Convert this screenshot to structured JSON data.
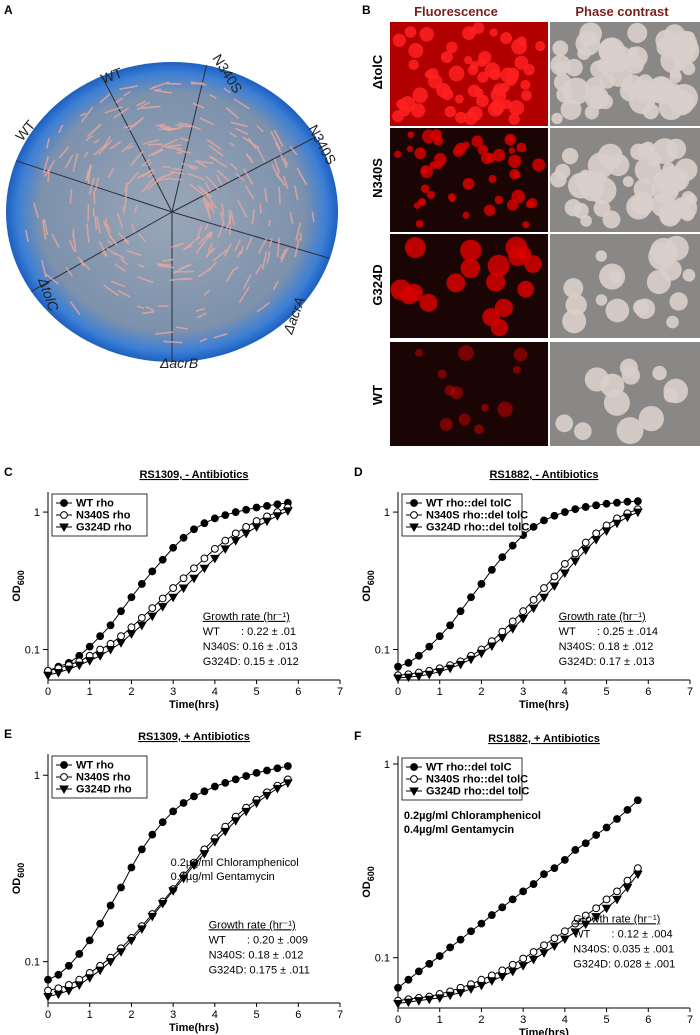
{
  "panels": {
    "A": {
      "label": "A",
      "plate_labels": [
        "WT",
        "N340S",
        "WT",
        "N340S",
        "ΔtolC",
        "ΔacrB",
        "ΔacrA"
      ]
    },
    "B": {
      "label": "B",
      "columns": [
        "Fluorescence",
        "Phase contrast"
      ],
      "rows": [
        "ΔtolC",
        "N340S",
        "G324D",
        "WT"
      ]
    }
  },
  "chart_data": [
    {
      "label": "C",
      "type": "line",
      "title": "RS1309, - Antibiotics",
      "xlabel": "Time(hrs)",
      "ylabel": "OD",
      "ylabel_sub": "600",
      "log_y": true,
      "legend": "upper left",
      "xlim": [
        0,
        7
      ],
      "xticks": [
        0,
        1,
        2,
        3,
        4,
        5,
        6,
        7
      ],
      "ylim": [
        0.06,
        1.4
      ],
      "yticks": [
        0.1,
        1
      ],
      "annotation_header": "Growth rate (hr⁻¹)",
      "annotation_rows": [
        "WT       : 0.22 ± .01",
        "N340S: 0.16 ± .013",
        "G324D: 0.15 ± .012"
      ],
      "x": [
        0,
        0.25,
        0.5,
        0.75,
        1,
        1.25,
        1.5,
        1.75,
        2,
        2.25,
        2.5,
        2.75,
        3,
        3.25,
        3.5,
        3.75,
        4,
        4.25,
        4.5,
        4.75,
        5,
        5.25,
        5.5,
        5.75
      ],
      "series": [
        {
          "name": "WT rho",
          "color": "#000000",
          "marker": "circle-filled",
          "values": [
            0.07,
            0.075,
            0.08,
            0.09,
            0.105,
            0.125,
            0.15,
            0.19,
            0.24,
            0.3,
            0.37,
            0.45,
            0.55,
            0.65,
            0.75,
            0.83,
            0.9,
            0.95,
            1.0,
            1.04,
            1.08,
            1.11,
            1.14,
            1.17
          ]
        },
        {
          "name": "N340S rho",
          "color": "#000000",
          "marker": "circle-open",
          "values": [
            0.07,
            0.073,
            0.077,
            0.082,
            0.09,
            0.1,
            0.11,
            0.125,
            0.145,
            0.17,
            0.2,
            0.235,
            0.28,
            0.33,
            0.39,
            0.46,
            0.54,
            0.62,
            0.7,
            0.78,
            0.86,
            0.93,
            1.0,
            1.08
          ]
        },
        {
          "name": "G324D rho",
          "color": "#000000",
          "marker": "triangle-down",
          "values": [
            0.065,
            0.068,
            0.072,
            0.077,
            0.083,
            0.09,
            0.1,
            0.112,
            0.13,
            0.15,
            0.175,
            0.205,
            0.24,
            0.28,
            0.33,
            0.39,
            0.46,
            0.54,
            0.62,
            0.7,
            0.78,
            0.86,
            0.94,
            1.02
          ]
        }
      ]
    },
    {
      "label": "D",
      "type": "line",
      "title": "RS1882, - Antibiotics",
      "xlabel": "Time(hrs)",
      "ylabel": "OD",
      "ylabel_sub": "600",
      "log_y": true,
      "legend": "upper left",
      "xlim": [
        0,
        7
      ],
      "xticks": [
        0,
        1,
        2,
        3,
        4,
        5,
        6,
        7
      ],
      "ylim": [
        0.06,
        1.4
      ],
      "yticks": [
        0.1,
        1
      ],
      "annotation_header": "Growth rate (hr⁻¹)",
      "annotation_rows": [
        "WT       : 0.25 ± .014",
        "N340S: 0.18 ± .012",
        "G324D: 0.17 ± .013"
      ],
      "x": [
        0,
        0.25,
        0.5,
        0.75,
        1,
        1.25,
        1.5,
        1.75,
        2,
        2.25,
        2.5,
        2.75,
        3,
        3.25,
        3.5,
        3.75,
        4,
        4.25,
        4.5,
        4.75,
        5,
        5.25,
        5.5,
        5.75
      ],
      "series": [
        {
          "name": "WT rho::del tolC",
          "color": "#000000",
          "marker": "circle-filled",
          "values": [
            0.075,
            0.08,
            0.09,
            0.105,
            0.125,
            0.15,
            0.19,
            0.24,
            0.3,
            0.38,
            0.47,
            0.57,
            0.68,
            0.78,
            0.87,
            0.94,
            1.0,
            1.05,
            1.09,
            1.12,
            1.15,
            1.17,
            1.19,
            1.2
          ]
        },
        {
          "name": "N340S rho::del tolC",
          "color": "#000000",
          "marker": "circle-open",
          "values": [
            0.065,
            0.066,
            0.068,
            0.07,
            0.073,
            0.077,
            0.082,
            0.09,
            0.1,
            0.115,
            0.135,
            0.16,
            0.19,
            0.23,
            0.28,
            0.34,
            0.42,
            0.5,
            0.6,
            0.7,
            0.8,
            0.9,
            0.98,
            1.05
          ]
        },
        {
          "name": "G324D rho::del tolC",
          "color": "#000000",
          "marker": "triangle-down",
          "values": [
            0.062,
            0.063,
            0.064,
            0.066,
            0.069,
            0.073,
            0.078,
            0.085,
            0.094,
            0.106,
            0.122,
            0.142,
            0.168,
            0.2,
            0.24,
            0.29,
            0.36,
            0.44,
            0.53,
            0.63,
            0.73,
            0.83,
            0.92,
            1.0
          ]
        }
      ]
    },
    {
      "label": "E",
      "type": "line",
      "title": "RS1309, + Antibiotics",
      "xlabel": "Time(hrs)",
      "ylabel": "OD",
      "ylabel_sub": "600",
      "log_y": true,
      "legend": "upper left",
      "xlim": [
        0,
        7
      ],
      "xticks": [
        0,
        1,
        2,
        3,
        4,
        5,
        6,
        7
      ],
      "ylim": [
        0.06,
        1.3
      ],
      "yticks": [
        0.1,
        1
      ],
      "conditions": [
        "0.2µg/ml Chloramphenicol",
        "0.4µg/ml Gentamycin"
      ],
      "annotation_header": "Growth rate (hr⁻¹)",
      "annotation_rows": [
        "WT       : 0.20 ± .009",
        "N340S: 0.18 ± .012",
        "G324D: 0.175 ± .011"
      ],
      "x": [
        0,
        0.25,
        0.5,
        0.75,
        1,
        1.25,
        1.5,
        1.75,
        2,
        2.25,
        2.5,
        2.75,
        3,
        3.25,
        3.5,
        3.75,
        4,
        4.25,
        4.5,
        4.75,
        5,
        5.25,
        5.5,
        5.75
      ],
      "series": [
        {
          "name": "WT rho",
          "color": "#000000",
          "marker": "circle-filled",
          "values": [
            0.08,
            0.085,
            0.095,
            0.11,
            0.13,
            0.16,
            0.2,
            0.25,
            0.32,
            0.4,
            0.48,
            0.56,
            0.64,
            0.71,
            0.77,
            0.82,
            0.87,
            0.91,
            0.95,
            0.99,
            1.03,
            1.06,
            1.09,
            1.12
          ]
        },
        {
          "name": "N340S rho",
          "color": "#000000",
          "marker": "circle-open",
          "values": [
            0.07,
            0.072,
            0.075,
            0.08,
            0.087,
            0.095,
            0.105,
            0.118,
            0.134,
            0.155,
            0.18,
            0.21,
            0.245,
            0.29,
            0.34,
            0.4,
            0.46,
            0.53,
            0.6,
            0.67,
            0.74,
            0.81,
            0.88,
            0.95
          ]
        },
        {
          "name": "G324D rho",
          "color": "#000000",
          "marker": "triangle-down",
          "values": [
            0.065,
            0.067,
            0.07,
            0.075,
            0.082,
            0.09,
            0.1,
            0.113,
            0.13,
            0.15,
            0.175,
            0.205,
            0.24,
            0.28,
            0.33,
            0.38,
            0.44,
            0.5,
            0.57,
            0.64,
            0.71,
            0.78,
            0.85,
            0.91
          ]
        }
      ]
    },
    {
      "label": "F",
      "type": "line",
      "title": "RS1882, + Antibiotics",
      "xlabel": "Time(hrs)",
      "ylabel": "OD",
      "ylabel_sub": "600",
      "log_y": true,
      "legend": "upper left",
      "xlim": [
        0,
        7
      ],
      "xticks": [
        0,
        1,
        2,
        3,
        4,
        5,
        6,
        7
      ],
      "ylim": [
        0.055,
        1.1
      ],
      "yticks": [
        0.1,
        1
      ],
      "conditions": [
        "0.2µg/ml Chloramphenicol",
        "0.4µg/ml Gentamycin"
      ],
      "annotation_header": "Growth rate (hr⁻¹)",
      "annotation_rows": [
        "WT       : 0.12 ± .004",
        "N340S: 0.035 ± .001",
        "G324D: 0.028 ± .001"
      ],
      "x": [
        0,
        0.25,
        0.5,
        0.75,
        1,
        1.25,
        1.5,
        1.75,
        2,
        2.25,
        2.5,
        2.75,
        3,
        3.25,
        3.5,
        3.75,
        4,
        4.25,
        4.5,
        4.75,
        5,
        5.25,
        5.5,
        5.75
      ],
      "series": [
        {
          "name": "WT rho::del tolC",
          "color": "#000000",
          "marker": "circle-filled",
          "values": [
            0.07,
            0.077,
            0.085,
            0.093,
            0.102,
            0.113,
            0.124,
            0.137,
            0.15,
            0.166,
            0.182,
            0.2,
            0.22,
            0.24,
            0.27,
            0.29,
            0.32,
            0.36,
            0.39,
            0.43,
            0.47,
            0.52,
            0.58,
            0.65
          ]
        },
        {
          "name": "N340S rho::del tolC",
          "color": "#000000",
          "marker": "circle-open",
          "values": [
            0.06,
            0.061,
            0.062,
            0.063,
            0.065,
            0.067,
            0.07,
            0.073,
            0.077,
            0.081,
            0.086,
            0.092,
            0.099,
            0.107,
            0.116,
            0.126,
            0.137,
            0.15,
            0.165,
            0.18,
            0.2,
            0.22,
            0.25,
            0.29
          ]
        },
        {
          "name": "G324D rho::del tolC",
          "color": "#000000",
          "marker": "triangle-down",
          "values": [
            0.058,
            0.059,
            0.06,
            0.061,
            0.062,
            0.064,
            0.066,
            0.069,
            0.072,
            0.076,
            0.08,
            0.085,
            0.091,
            0.098,
            0.106,
            0.115,
            0.125,
            0.136,
            0.149,
            0.163,
            0.18,
            0.2,
            0.23,
            0.27
          ]
        }
      ]
    }
  ]
}
